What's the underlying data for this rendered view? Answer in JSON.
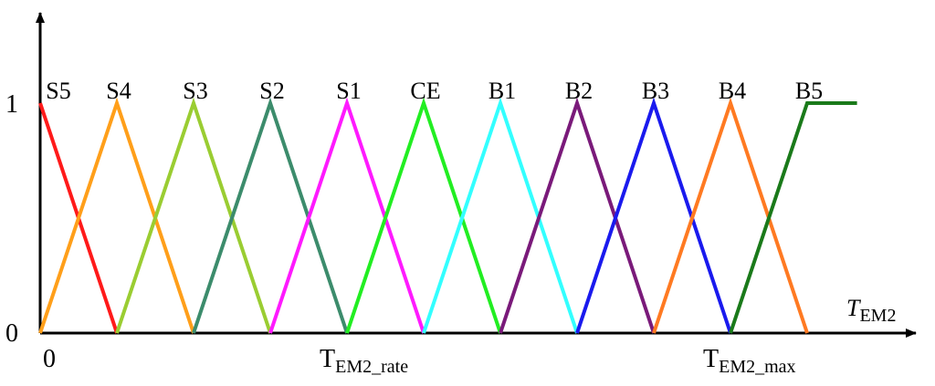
{
  "chart_data": {
    "type": "line",
    "title": "",
    "ylabel": "",
    "xlabel": {
      "main": "T",
      "sub": "EM2",
      "italic": true
    },
    "y_ticks": [
      "0",
      "1"
    ],
    "x_ticks": [
      {
        "main": "0",
        "sub": "",
        "x": 0
      },
      {
        "main": "T",
        "sub": "EM2_rate",
        "x": 4
      },
      {
        "main": "T",
        "sub": "EM2_max",
        "x": 9
      }
    ],
    "xlim": [
      0,
      10.7
    ],
    "ylim": [
      0,
      1
    ],
    "series": [
      {
        "name": "S5",
        "color": "#ff1a1a",
        "points": [
          [
            0,
            1
          ],
          [
            1,
            0
          ]
        ]
      },
      {
        "name": "S4",
        "color": "#ff9f1a",
        "points": [
          [
            0,
            0
          ],
          [
            1,
            1
          ],
          [
            2,
            0
          ]
        ]
      },
      {
        "name": "S3",
        "color": "#9acd32",
        "points": [
          [
            1,
            0
          ],
          [
            2,
            1
          ],
          [
            3,
            0
          ]
        ]
      },
      {
        "name": "S2",
        "color": "#3c8c6c",
        "points": [
          [
            2,
            0
          ],
          [
            3,
            1
          ],
          [
            4,
            0
          ]
        ]
      },
      {
        "name": "S1",
        "color": "#ff1aff",
        "points": [
          [
            3,
            0
          ],
          [
            4,
            1
          ],
          [
            5,
            0
          ]
        ]
      },
      {
        "name": "CE",
        "color": "#22ee22",
        "points": [
          [
            4,
            0
          ],
          [
            5,
            1
          ],
          [
            6,
            0
          ]
        ]
      },
      {
        "name": "B1",
        "color": "#33ffff",
        "points": [
          [
            5,
            0
          ],
          [
            6,
            1
          ],
          [
            7,
            0
          ]
        ]
      },
      {
        "name": "B2",
        "color": "#7a1a7a",
        "points": [
          [
            6,
            0
          ],
          [
            7,
            1
          ],
          [
            8,
            0
          ]
        ]
      },
      {
        "name": "B3",
        "color": "#1a1aee",
        "points": [
          [
            7,
            0
          ],
          [
            8,
            1
          ],
          [
            9,
            0
          ]
        ]
      },
      {
        "name": "B4",
        "color": "#ff7a22",
        "points": [
          [
            8,
            0
          ],
          [
            9,
            1
          ],
          [
            10,
            0
          ]
        ]
      },
      {
        "name": "B5",
        "color": "#1a7a1a",
        "points": [
          [
            9,
            0
          ],
          [
            10,
            1
          ],
          [
            10.65,
            1
          ]
        ]
      }
    ]
  }
}
